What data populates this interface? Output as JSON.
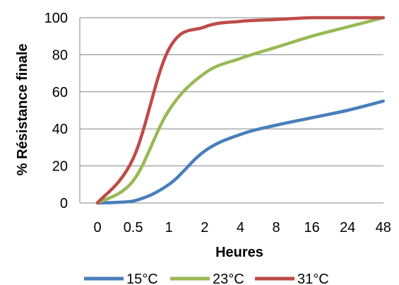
{
  "chart_data": {
    "type": "line",
    "title": "",
    "xlabel": "Heures",
    "ylabel": "% Résistance finale",
    "categories": [
      "0",
      "0.5",
      "1",
      "2",
      "4",
      "8",
      "16",
      "24",
      "48"
    ],
    "ylim": [
      0,
      100
    ],
    "yticks": [
      "0",
      "20",
      "40",
      "60",
      "80",
      "100"
    ],
    "grid": "horizontal",
    "legend_position": "bottom",
    "series": [
      {
        "name": "15°C",
        "color": "#4a7ebb",
        "values": [
          0,
          1,
          10,
          28,
          37,
          42,
          46,
          50,
          55
        ]
      },
      {
        "name": "23°C",
        "color": "#98b954",
        "values": [
          0,
          12,
          50,
          70,
          78,
          84,
          90,
          95,
          100
        ]
      },
      {
        "name": "31°C",
        "color": "#be4b48",
        "values": [
          0,
          24,
          83,
          95,
          98,
          99,
          100,
          100,
          100
        ]
      }
    ]
  }
}
